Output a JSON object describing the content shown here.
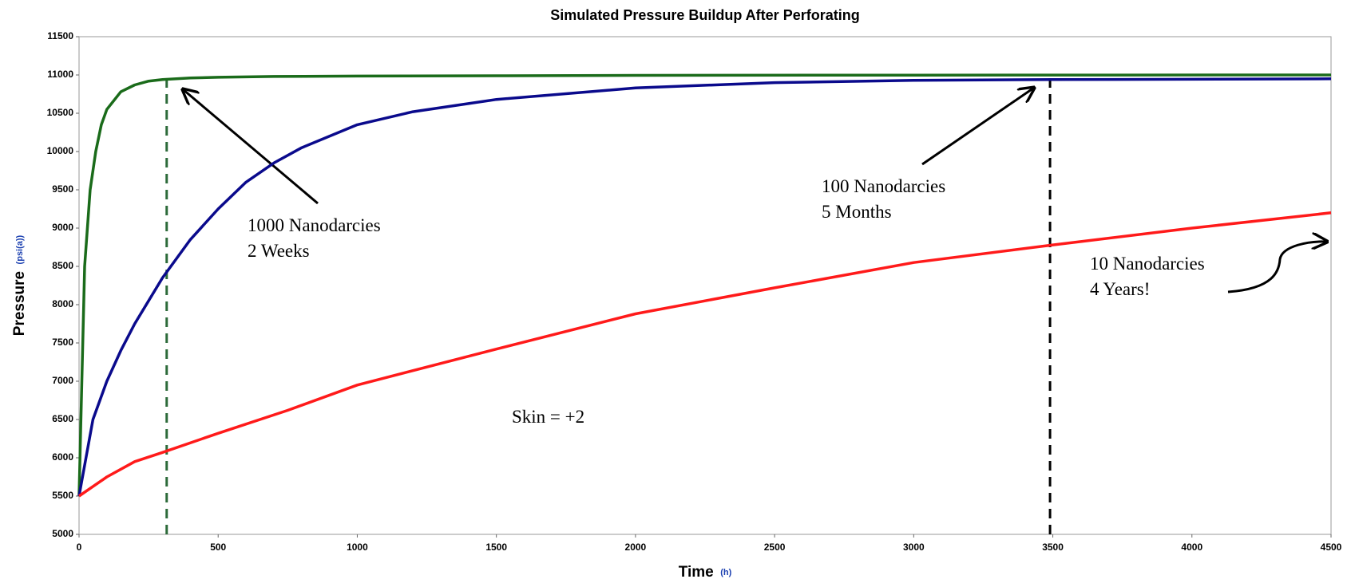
{
  "chart_data": {
    "type": "line",
    "title": "Simulated Pressure Buildup After Perforating",
    "x_label": "Time",
    "x_unit": "(h)",
    "y_label": "Pressure",
    "y_unit": "(psi(a))",
    "xlim": [
      0,
      4500
    ],
    "ylim": [
      5000,
      11500
    ],
    "xticks": [
      0,
      500,
      1000,
      1500,
      2000,
      2500,
      3000,
      3500,
      4000,
      4500
    ],
    "yticks": [
      5000,
      5500,
      6000,
      6500,
      7000,
      7500,
      8000,
      8500,
      9000,
      9500,
      10000,
      10500,
      11000,
      11500
    ],
    "grid": false,
    "series": [
      {
        "name": "1000 Nanodarcies",
        "color": "#1a6b1a",
        "x": [
          0,
          10,
          20,
          40,
          60,
          80,
          100,
          150,
          200,
          250,
          300,
          400,
          500,
          700,
          1000,
          1500,
          2000,
          3000,
          4500
        ],
        "values": [
          5500,
          7000,
          8500,
          9500,
          10000,
          10350,
          10550,
          10780,
          10870,
          10920,
          10940,
          10960,
          10970,
          10980,
          10985,
          10990,
          10995,
          10998,
          11000
        ]
      },
      {
        "name": "100 Nanodarcies",
        "color": "#0a0a8c",
        "x": [
          0,
          25,
          50,
          100,
          150,
          200,
          300,
          400,
          500,
          600,
          700,
          800,
          1000,
          1200,
          1500,
          2000,
          2500,
          3000,
          3500,
          4500
        ],
        "values": [
          5500,
          6000,
          6500,
          7000,
          7400,
          7750,
          8350,
          8850,
          9250,
          9600,
          9850,
          10050,
          10350,
          10520,
          10680,
          10830,
          10900,
          10930,
          10940,
          10950
        ]
      },
      {
        "name": "10 Nanodarcies",
        "color": "#ff1a1a",
        "x": [
          0,
          100,
          200,
          300,
          500,
          750,
          1000,
          1500,
          2000,
          2500,
          3000,
          3500,
          4000,
          4500
        ],
        "values": [
          5500,
          5750,
          5950,
          6070,
          6320,
          6620,
          6950,
          7420,
          7880,
          8220,
          8550,
          8780,
          9000,
          9200
        ]
      }
    ],
    "vlines": [
      {
        "x": 315,
        "color": "#2d6b3a"
      },
      {
        "x": 3490,
        "color": "#000000"
      }
    ],
    "annotations": [
      {
        "lines": [
          "1000 Nanodarcies",
          "2 Weeks"
        ]
      },
      {
        "lines": [
          "100 Nanodarcies",
          "5 Months"
        ]
      },
      {
        "lines": [
          "10 Nanodarcies",
          "4 Years!"
        ]
      },
      {
        "lines": [
          "Skin = +2"
        ]
      }
    ]
  }
}
